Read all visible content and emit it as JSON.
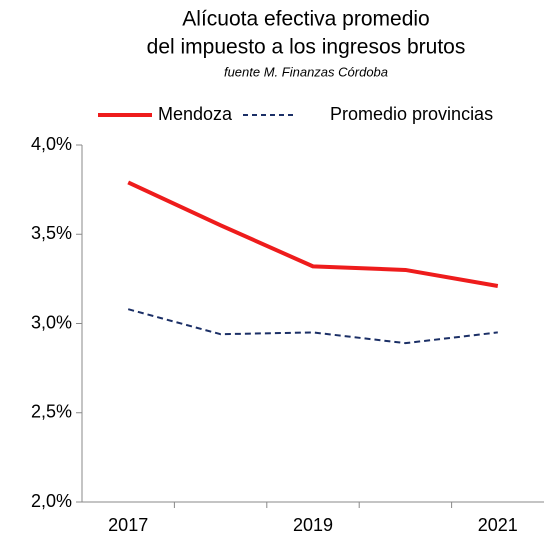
{
  "chart_data": {
    "type": "line",
    "title": [
      "Alícuota efectiva promedio",
      "del impuesto a los ingresos brutos"
    ],
    "subtitle": "fuente M. Finanzas Córdoba",
    "categories": [
      "2017",
      null,
      "2019",
      null,
      "2021"
    ],
    "series": [
      {
        "name": "Mendoza",
        "color": "#ee1c1c",
        "dash": false,
        "values": [
          3.79,
          3.55,
          3.32,
          3.3,
          3.21
        ]
      },
      {
        "name": "Promedio provincias",
        "color": "#1b2f66",
        "dash": true,
        "values": [
          3.08,
          2.94,
          2.95,
          2.89,
          2.95
        ]
      }
    ],
    "ylim": [
      2.0,
      4.0
    ],
    "yticks": [
      {
        "value": 2.0,
        "label": "2,0%"
      },
      {
        "value": 2.5,
        "label": "2,5%"
      },
      {
        "value": 3.0,
        "label": "3,0%"
      },
      {
        "value": 3.5,
        "label": "3,5%"
      },
      {
        "value": 4.0,
        "label": "4,0%"
      }
    ],
    "grid": false,
    "legend": "top"
  }
}
